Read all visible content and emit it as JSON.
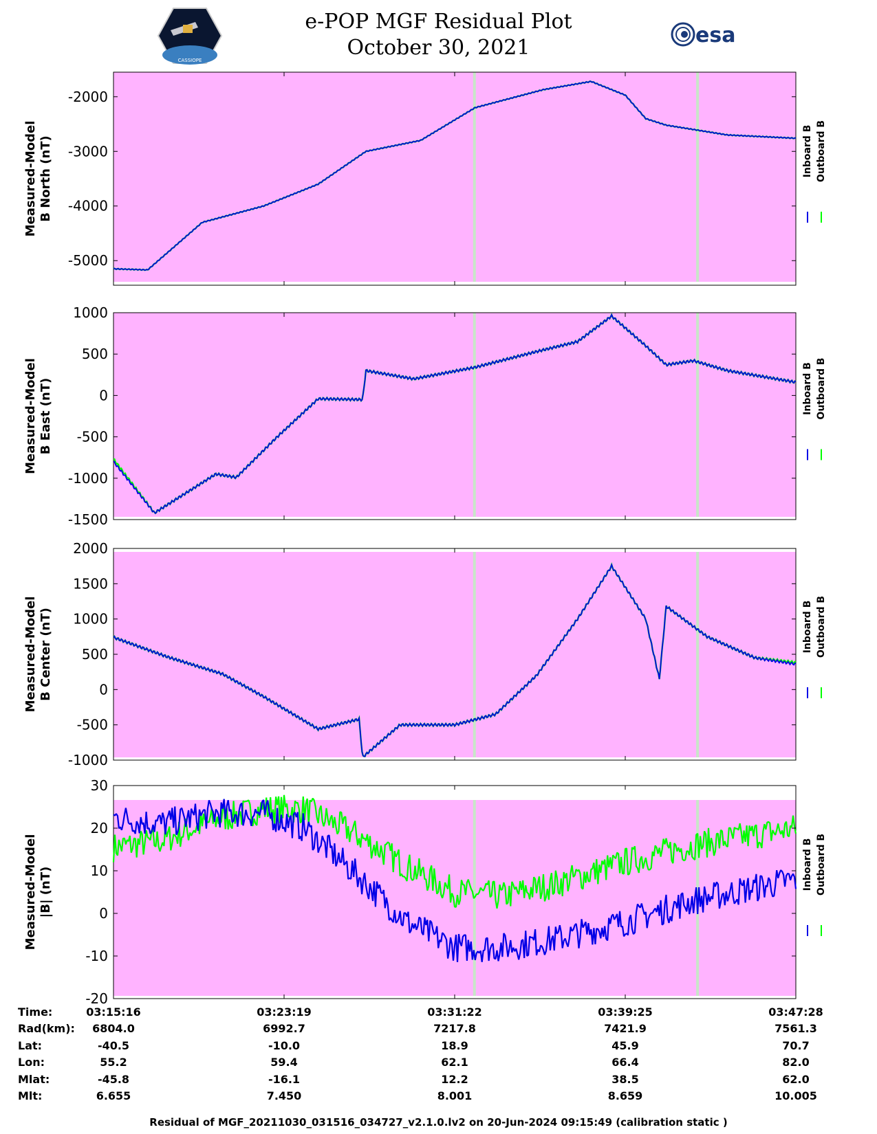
{
  "header": {
    "title": "e-POP MGF Residual Plot",
    "date": "October 30, 2021",
    "left_logo_text": "CASSIOPE",
    "right_logo_text": "esa"
  },
  "colors": {
    "background": "#ffb3ff",
    "inboard": "#0000e6",
    "outboard": "#00ff00",
    "gap": "#c8e6c8"
  },
  "legend": {
    "inboard": "Inboard B",
    "outboard": "Outboard B"
  },
  "chart_data": [
    {
      "type": "line",
      "ylabel_line1": "Measured-Model",
      "ylabel_line2": "B North (nT)",
      "ylim": [
        -5450,
        -1550
      ],
      "yticks": [
        -2000,
        -3000,
        -4000,
        -5000
      ],
      "x": [
        0,
        0.05,
        0.13,
        0.22,
        0.3,
        0.37,
        0.45,
        0.53,
        0.63,
        0.7,
        0.75,
        0.78,
        0.81,
        0.85,
        0.9,
        1.0
      ],
      "series": [
        {
          "name": "Inboard B",
          "values": [
            -5150,
            -5170,
            -4300,
            -4000,
            -3600,
            -3000,
            -2800,
            -2200,
            -1870,
            -1720,
            -1970,
            -2400,
            -2520,
            -2600,
            -2700,
            -2760
          ]
        },
        {
          "name": "Outboard B",
          "values": [
            -5150,
            -5170,
            -4300,
            -4000,
            -3600,
            -3000,
            -2800,
            -2200,
            -1870,
            -1720,
            -1970,
            -2400,
            -2520,
            -2600,
            -2700,
            -2760
          ]
        }
      ],
      "grid": false
    },
    {
      "type": "line",
      "ylabel_line1": "Measured-Model",
      "ylabel_line2": "B East (nT)",
      "ylim": [
        -1500,
        1000
      ],
      "yticks": [
        1000,
        500,
        0,
        -500,
        -1000,
        -1500
      ],
      "x": [
        0,
        0.06,
        0.15,
        0.18,
        0.24,
        0.3,
        0.365,
        0.37,
        0.44,
        0.53,
        0.62,
        0.68,
        0.73,
        0.78,
        0.81,
        0.85,
        0.9,
        1.0
      ],
      "series": [
        {
          "name": "Inboard B",
          "values": [
            -800,
            -1420,
            -950,
            -990,
            -500,
            -40,
            -50,
            300,
            200,
            340,
            530,
            650,
            960,
            600,
            370,
            420,
            300,
            160
          ]
        },
        {
          "name": "Outboard B",
          "values": [
            -770,
            -1420,
            -950,
            -990,
            -500,
            -40,
            -50,
            300,
            200,
            340,
            530,
            650,
            960,
            600,
            370,
            420,
            300,
            160
          ]
        }
      ],
      "grid": false
    },
    {
      "type": "line",
      "ylabel_line1": "Measured-Model",
      "ylabel_line2": "B Center (nT)",
      "ylim": [
        -1000,
        2000
      ],
      "yticks": [
        2000,
        1500,
        1000,
        500,
        0,
        -500,
        -1000
      ],
      "x": [
        0,
        0.08,
        0.16,
        0.22,
        0.3,
        0.36,
        0.365,
        0.42,
        0.5,
        0.56,
        0.62,
        0.68,
        0.73,
        0.78,
        0.8,
        0.81,
        0.87,
        0.94,
        1.0
      ],
      "series": [
        {
          "name": "Inboard B",
          "values": [
            740,
            460,
            220,
            -100,
            -560,
            -420,
            -960,
            -500,
            -500,
            -350,
            200,
            1000,
            1750,
            1000,
            150,
            1180,
            750,
            450,
            360
          ]
        },
        {
          "name": "Outboard B",
          "values": [
            740,
            460,
            220,
            -100,
            -560,
            -420,
            -960,
            -500,
            -500,
            -350,
            200,
            1000,
            1750,
            1000,
            150,
            1180,
            750,
            450,
            380
          ]
        }
      ],
      "grid": false
    },
    {
      "type": "line",
      "ylabel_line1": "Measured-Model",
      "ylabel_line2": "|B| (nT)",
      "ylim": [
        -20,
        30
      ],
      "yticks": [
        30,
        20,
        10,
        0,
        -10,
        -20
      ],
      "x": [
        0,
        0.07,
        0.15,
        0.22,
        0.28,
        0.35,
        0.43,
        0.5,
        0.57,
        0.65,
        0.75,
        0.85,
        1.0
      ],
      "series": [
        {
          "name": "Inboard B",
          "values": [
            22.5,
            21,
            23.5,
            23.5,
            20,
            10,
            -2,
            -8,
            -8,
            -6,
            -2,
            3,
            8
          ]
        },
        {
          "name": "Outboard B",
          "values": [
            15.5,
            17,
            22,
            24.5,
            24.5,
            19,
            11,
            5,
            4,
            7,
            12,
            16,
            20
          ]
        }
      ],
      "grid": false
    }
  ],
  "time_axis": {
    "rows": [
      {
        "label": "Time:",
        "values": [
          "03:15:16",
          "03:23:19",
          "03:31:22",
          "03:39:25",
          "03:47:28"
        ]
      },
      {
        "label": "Rad(km):",
        "values": [
          "6804.0",
          "6992.7",
          "7217.8",
          "7421.9",
          "7561.3"
        ]
      },
      {
        "label": "Lat:",
        "values": [
          "-40.5",
          "-10.0",
          "18.9",
          "45.9",
          "70.7"
        ]
      },
      {
        "label": "Lon:",
        "values": [
          "55.2",
          "59.4",
          "62.1",
          "66.4",
          "82.0"
        ]
      },
      {
        "label": "Mlat:",
        "values": [
          "-45.8",
          "-16.1",
          "12.2",
          "38.5",
          "62.0"
        ]
      },
      {
        "label": "Mlt:",
        "values": [
          "6.655",
          "7.450",
          "8.001",
          "8.659",
          "10.005"
        ]
      }
    ]
  },
  "footer": "Residual of MGF_20211030_031516_034727_v2.1.0.lv2 on 20-Jun-2024 09:15:49 (calibration static )"
}
